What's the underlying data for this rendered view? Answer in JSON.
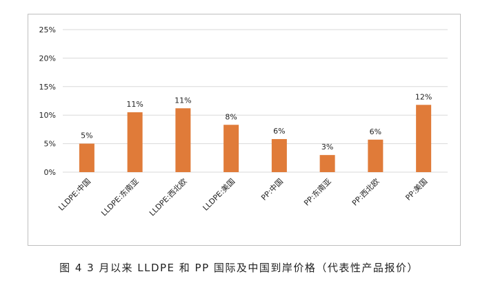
{
  "caption": "图 4  3 月以来 LLDPE 和 PP 国际及中国到岸价格（代表性产品报价）",
  "chart_data": {
    "type": "bar",
    "categories": [
      "LLDPE:中国",
      "LLDPE:东南亚",
      "LLDPE:西北欧",
      "LLDPE:美国",
      "PP:中国",
      "PP:东南亚",
      "PP:西北欧",
      "PP:美国"
    ],
    "values": [
      5,
      10.5,
      11.2,
      8.3,
      5.8,
      3.0,
      5.7,
      11.8
    ],
    "data_labels": [
      "5%",
      "11%",
      "11%",
      "8%",
      "6%",
      "3%",
      "6%",
      "12%"
    ],
    "y_ticks": [
      "0%",
      "5%",
      "10%",
      "15%",
      "20%",
      "25%"
    ],
    "ylim": [
      0,
      25
    ],
    "grid": true,
    "legend": "none",
    "bar_color": "#e07b39",
    "grid_color": "#d9d9d9"
  }
}
